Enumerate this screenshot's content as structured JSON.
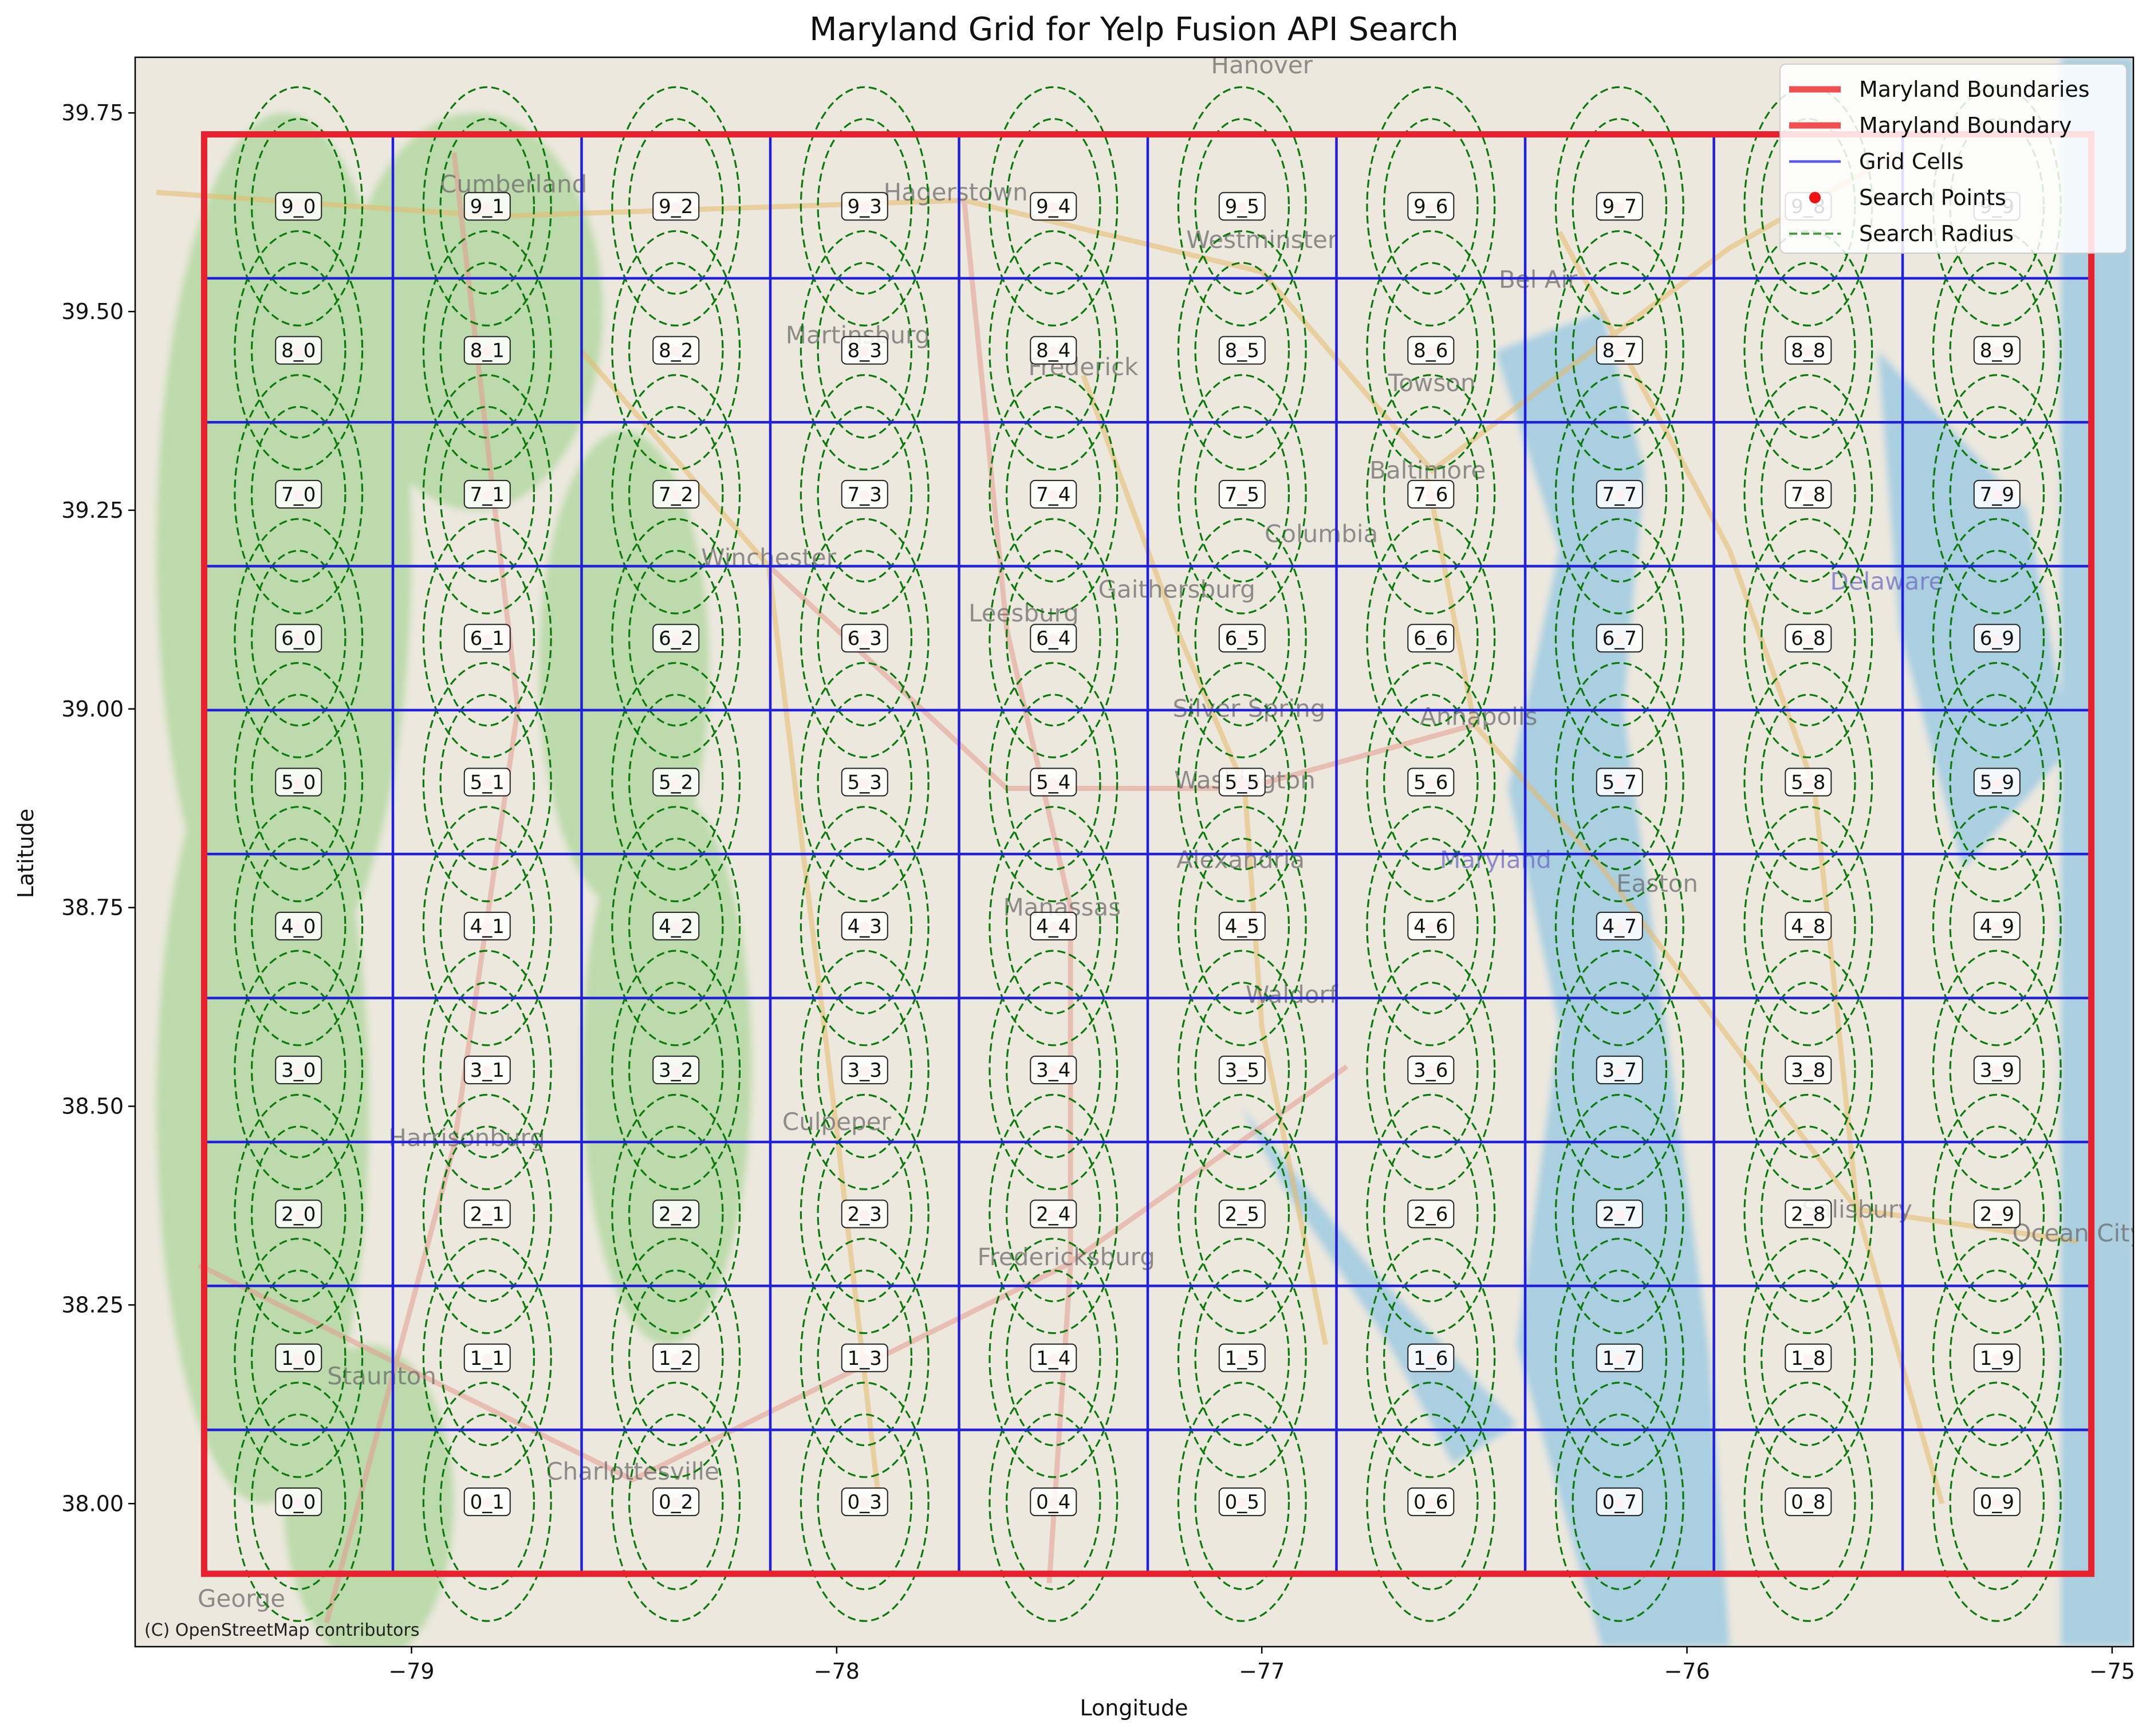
{
  "chart_data": {
    "type": "scatter",
    "title": "Maryland Grid for Yelp Fusion API Search",
    "xlabel": "Longitude",
    "ylabel": "Latitude",
    "xlim": [
      -79.65,
      -74.95
    ],
    "ylim": [
      37.82,
      39.82
    ],
    "x_ticks": [
      -79,
      -78,
      -77,
      -76,
      -75
    ],
    "x_tick_labels": [
      "−79",
      "−78",
      "−77",
      "−76",
      "−75"
    ],
    "y_ticks": [
      38.0,
      38.25,
      38.5,
      38.75,
      39.0,
      39.25,
      39.5,
      39.75
    ],
    "y_tick_labels": [
      "38.00",
      "38.25",
      "38.50",
      "38.75",
      "39.00",
      "39.25",
      "39.50",
      "39.75"
    ],
    "boundary": {
      "lon_min": -79.4877,
      "lon_max": -75.0489,
      "lat_min": 37.9117,
      "lat_max": 39.723
    },
    "grid": {
      "rows": 10,
      "cols": 10
    },
    "search_radius_deg": {
      "inner": 0.11,
      "outer": 0.15
    },
    "legend": {
      "placement": "top-right",
      "entries": [
        {
          "label": "Maryland Boundaries",
          "style": "thick-line",
          "color": "#f05050"
        },
        {
          "label": "Maryland Boundary",
          "style": "thick-line",
          "color": "#f05050"
        },
        {
          "label": "Grid Cells",
          "style": "line",
          "color": "#5a5aee"
        },
        {
          "label": "Search Points",
          "style": "dot",
          "color": "#ee1111"
        },
        {
          "label": "Search Radius",
          "style": "dashed",
          "color": "#3a9a3a"
        }
      ]
    },
    "attribution": "(C) OpenStreetMap contributors"
  },
  "colors": {
    "boundary": "#e8202e",
    "grid": "#1f1fdd",
    "point": "#f2a0a0",
    "radius": "#0b7a0b",
    "land": "#ece8de",
    "water": "#a9cfe1",
    "forest": "#b7d9a6"
  },
  "basemap_places": [
    {
      "name": "Hanover",
      "lon": -77.0,
      "lat": 39.8
    },
    {
      "name": "Cumberland",
      "lon": -78.76,
      "lat": 39.65
    },
    {
      "name": "Hagerstown",
      "lon": -77.72,
      "lat": 39.64
    },
    {
      "name": "Westminster",
      "lon": -77.0,
      "lat": 39.58
    },
    {
      "name": "Bel Air",
      "lon": -76.35,
      "lat": 39.53
    },
    {
      "name": "Martinsburg",
      "lon": -77.95,
      "lat": 39.46
    },
    {
      "name": "Frederick",
      "lon": -77.42,
      "lat": 39.42
    },
    {
      "name": "Towson",
      "lon": -76.6,
      "lat": 39.4
    },
    {
      "name": "Baltimore",
      "lon": -76.61,
      "lat": 39.29
    },
    {
      "name": "Columbia",
      "lon": -76.86,
      "lat": 39.21
    },
    {
      "name": "Winchester",
      "lon": -78.16,
      "lat": 39.18
    },
    {
      "name": "Delaware",
      "lon": -75.53,
      "lat": 39.15
    },
    {
      "name": "Gaithersburg",
      "lon": -77.2,
      "lat": 39.14
    },
    {
      "name": "Leesburg",
      "lon": -77.56,
      "lat": 39.11
    },
    {
      "name": "Silver Spring",
      "lon": -77.03,
      "lat": 38.99
    },
    {
      "name": "Annapolis",
      "lon": -76.49,
      "lat": 38.98
    },
    {
      "name": "Washington",
      "lon": -77.04,
      "lat": 38.9
    },
    {
      "name": "Alexandria",
      "lon": -77.05,
      "lat": 38.8
    },
    {
      "name": "Maryland",
      "lon": -76.45,
      "lat": 38.8
    },
    {
      "name": "Manassas",
      "lon": -77.47,
      "lat": 38.74
    },
    {
      "name": "Easton",
      "lon": -76.07,
      "lat": 38.77
    },
    {
      "name": "Waldorf",
      "lon": -76.93,
      "lat": 38.63
    },
    {
      "name": "Culpeper",
      "lon": -78.0,
      "lat": 38.47
    },
    {
      "name": "Harrisonburg",
      "lon": -78.87,
      "lat": 38.45
    },
    {
      "name": "Fredericksburg",
      "lon": -77.46,
      "lat": 38.3
    },
    {
      "name": "Salisbury",
      "lon": -75.6,
      "lat": 38.36
    },
    {
      "name": "Ocean City",
      "lon": -75.08,
      "lat": 38.33
    },
    {
      "name": "Staunton",
      "lon": -79.07,
      "lat": 38.15
    },
    {
      "name": "Charlottesville",
      "lon": -78.48,
      "lat": 38.03
    },
    {
      "name": "George",
      "lon": -79.4,
      "lat": 37.87
    }
  ]
}
